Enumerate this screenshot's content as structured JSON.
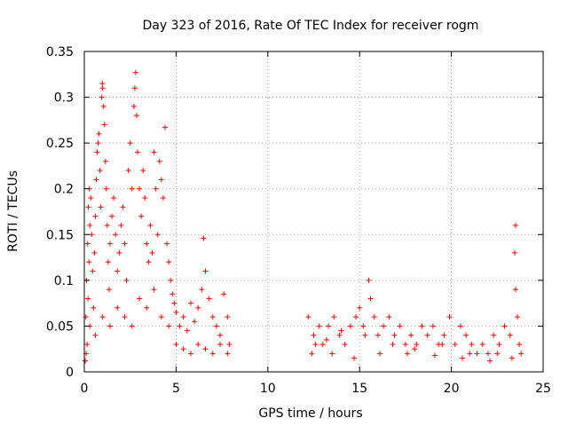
{
  "chart_data": {
    "type": "scatter",
    "title": "Day 323 of 2016, Rate Of TEC Index for receiver rogm",
    "xlabel": "GPS time / hours",
    "ylabel": "ROTI / TECUs",
    "xlim": [
      0,
      25
    ],
    "ylim": [
      0,
      0.35
    ],
    "x_ticks": [
      0,
      5,
      10,
      15,
      20,
      25
    ],
    "y_ticks": [
      0,
      0.05,
      0.1,
      0.15,
      0.2,
      0.25,
      0.3,
      0.35
    ],
    "x_tick_labels": [
      "0",
      "5",
      "10",
      "15",
      "20",
      "25"
    ],
    "y_tick_labels": [
      "0",
      "0.05",
      "0.1",
      "0.15",
      "0.2",
      "0.25",
      "0.3",
      "0.35"
    ],
    "grid": true,
    "marker": "plus",
    "marker_color": "#ff0000",
    "series": [
      {
        "points": [
          [
            0.05,
            0.012
          ],
          [
            0.1,
            0.02
          ],
          [
            0.15,
            0.03
          ],
          [
            0.08,
            0.06
          ],
          [
            0.2,
            0.08
          ],
          [
            0.12,
            0.1
          ],
          [
            0.25,
            0.12
          ],
          [
            0.18,
            0.14
          ],
          [
            0.3,
            0.16
          ],
          [
            0.22,
            0.18
          ],
          [
            0.35,
            0.19
          ],
          [
            0.28,
            0.2
          ],
          [
            0.4,
            0.15
          ],
          [
            0.45,
            0.11
          ],
          [
            0.5,
            0.07
          ],
          [
            0.55,
            0.13
          ],
          [
            0.6,
            0.17
          ],
          [
            0.65,
            0.21
          ],
          [
            0.7,
            0.24
          ],
          [
            0.75,
            0.25
          ],
          [
            0.8,
            0.26
          ],
          [
            0.85,
            0.22
          ],
          [
            0.9,
            0.18
          ],
          [
            0.95,
            0.3
          ],
          [
            1.0,
            0.31
          ],
          [
            1.05,
            0.29
          ],
          [
            0.98,
            0.315
          ],
          [
            1.1,
            0.27
          ],
          [
            1.15,
            0.23
          ],
          [
            1.2,
            0.2
          ],
          [
            1.25,
            0.16
          ],
          [
            1.3,
            0.12
          ],
          [
            1.35,
            0.09
          ],
          [
            1.4,
            0.14
          ],
          [
            1.5,
            0.17
          ],
          [
            1.6,
            0.19
          ],
          [
            1.7,
            0.15
          ],
          [
            1.8,
            0.11
          ],
          [
            1.9,
            0.13
          ],
          [
            2.0,
            0.16
          ],
          [
            2.1,
            0.18
          ],
          [
            2.2,
            0.14
          ],
          [
            2.3,
            0.1
          ],
          [
            2.4,
            0.22
          ],
          [
            2.5,
            0.25
          ],
          [
            2.6,
            0.2
          ],
          [
            2.7,
            0.29
          ],
          [
            2.75,
            0.31
          ],
          [
            2.8,
            0.327
          ],
          [
            2.85,
            0.28
          ],
          [
            2.9,
            0.24
          ],
          [
            3.0,
            0.2
          ],
          [
            3.1,
            0.17
          ],
          [
            3.2,
            0.22
          ],
          [
            3.3,
            0.19
          ],
          [
            3.4,
            0.14
          ],
          [
            3.5,
            0.12
          ],
          [
            3.6,
            0.16
          ],
          [
            3.7,
            0.13
          ],
          [
            3.8,
            0.24
          ],
          [
            3.9,
            0.2
          ],
          [
            4.0,
            0.15
          ],
          [
            4.1,
            0.23
          ],
          [
            4.2,
            0.21
          ],
          [
            4.3,
            0.19
          ],
          [
            4.4,
            0.267
          ],
          [
            4.5,
            0.14
          ],
          [
            4.6,
            0.12
          ],
          [
            4.7,
            0.1
          ],
          [
            4.8,
            0.085
          ],
          [
            4.9,
            0.075
          ],
          [
            5.0,
            0.065
          ],
          [
            5.2,
            0.05
          ],
          [
            5.4,
            0.06
          ],
          [
            5.6,
            0.045
          ],
          [
            5.8,
            0.075
          ],
          [
            6.0,
            0.055
          ],
          [
            6.2,
            0.07
          ],
          [
            6.4,
            0.09
          ],
          [
            6.5,
            0.146
          ],
          [
            6.6,
            0.11
          ],
          [
            6.8,
            0.08
          ],
          [
            7.0,
            0.06
          ],
          [
            7.2,
            0.05
          ],
          [
            7.4,
            0.04
          ],
          [
            7.6,
            0.085
          ],
          [
            7.8,
            0.06
          ],
          [
            7.9,
            0.03
          ],
          [
            0.3,
            0.05
          ],
          [
            0.6,
            0.04
          ],
          [
            1.0,
            0.06
          ],
          [
            1.4,
            0.05
          ],
          [
            1.8,
            0.07
          ],
          [
            2.2,
            0.06
          ],
          [
            2.6,
            0.05
          ],
          [
            3.0,
            0.08
          ],
          [
            3.4,
            0.07
          ],
          [
            3.8,
            0.09
          ],
          [
            4.2,
            0.06
          ],
          [
            4.6,
            0.05
          ],
          [
            5.0,
            0.03
          ],
          [
            5.4,
            0.025
          ],
          [
            5.8,
            0.02
          ],
          [
            6.2,
            0.03
          ],
          [
            6.6,
            0.025
          ],
          [
            7.0,
            0.02
          ],
          [
            7.4,
            0.03
          ],
          [
            7.8,
            0.02
          ],
          [
            12.2,
            0.06
          ],
          [
            12.5,
            0.04
          ],
          [
            12.8,
            0.05
          ],
          [
            13.0,
            0.03
          ],
          [
            13.3,
            0.05
          ],
          [
            13.6,
            0.06
          ],
          [
            13.9,
            0.04
          ],
          [
            14.2,
            0.03
          ],
          [
            14.5,
            0.05
          ],
          [
            14.8,
            0.06
          ],
          [
            15.0,
            0.07
          ],
          [
            15.2,
            0.05
          ],
          [
            15.5,
            0.1
          ],
          [
            15.6,
            0.08
          ],
          [
            15.8,
            0.06
          ],
          [
            16.0,
            0.04
          ],
          [
            16.3,
            0.05
          ],
          [
            16.6,
            0.06
          ],
          [
            16.9,
            0.04
          ],
          [
            17.2,
            0.05
          ],
          [
            17.5,
            0.03
          ],
          [
            17.8,
            0.04
          ],
          [
            18.1,
            0.03
          ],
          [
            18.4,
            0.05
          ],
          [
            18.7,
            0.04
          ],
          [
            19.0,
            0.05
          ],
          [
            19.3,
            0.03
          ],
          [
            19.6,
            0.04
          ],
          [
            19.9,
            0.06
          ],
          [
            20.2,
            0.03
          ],
          [
            20.5,
            0.05
          ],
          [
            20.8,
            0.04
          ],
          [
            21.1,
            0.03
          ],
          [
            21.4,
            0.02
          ],
          [
            21.7,
            0.03
          ],
          [
            22.0,
            0.02
          ],
          [
            22.3,
            0.04
          ],
          [
            22.6,
            0.03
          ],
          [
            22.9,
            0.05
          ],
          [
            23.2,
            0.04
          ],
          [
            23.5,
            0.16
          ],
          [
            23.45,
            0.13
          ],
          [
            23.5,
            0.09
          ],
          [
            23.6,
            0.06
          ],
          [
            23.7,
            0.03
          ],
          [
            12.4,
            0.02
          ],
          [
            13.5,
            0.02
          ],
          [
            14.7,
            0.015
          ],
          [
            16.1,
            0.02
          ],
          [
            17.6,
            0.02
          ],
          [
            19.1,
            0.018
          ],
          [
            20.6,
            0.015
          ],
          [
            22.1,
            0.012
          ],
          [
            23.3,
            0.015
          ],
          [
            12.6,
            0.03
          ],
          [
            13.2,
            0.035
          ],
          [
            14.0,
            0.045
          ],
          [
            15.3,
            0.04
          ],
          [
            16.8,
            0.03
          ],
          [
            18.0,
            0.025
          ],
          [
            19.5,
            0.03
          ],
          [
            21.0,
            0.02
          ],
          [
            22.5,
            0.02
          ],
          [
            23.8,
            0.02
          ]
        ]
      }
    ]
  }
}
